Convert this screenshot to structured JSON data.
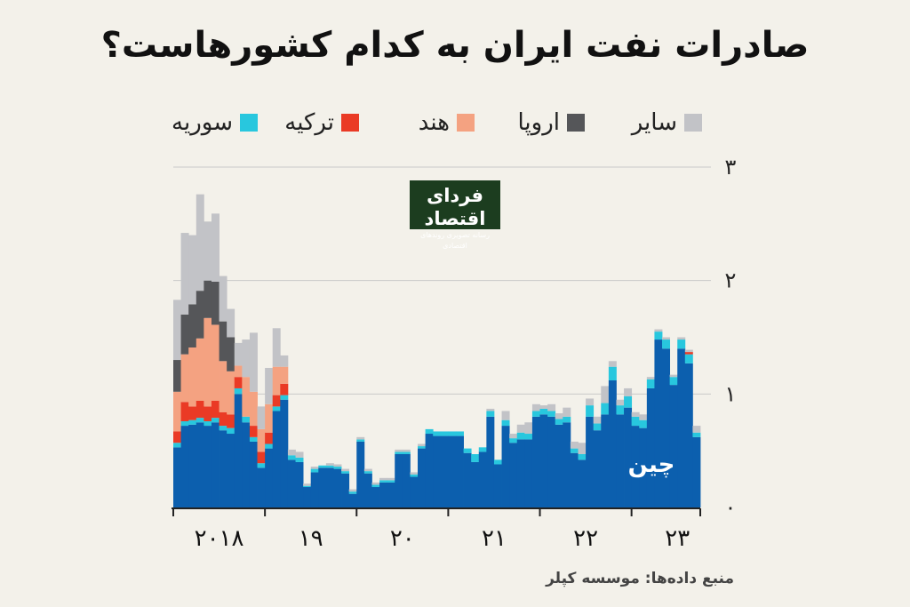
{
  "title": "صادرات نفت ایران به کدام کشورهاست؟",
  "legend": [
    {
      "label": "سایر",
      "color": "#c2c3c7"
    },
    {
      "label": "اروپا",
      "color": "#555659"
    },
    {
      "label": "هند",
      "color": "#f4a281"
    },
    {
      "label": "ترکیه",
      "color": "#ea3a25"
    },
    {
      "label": "سوریه",
      "color": "#28c7de"
    }
  ],
  "logo": {
    "main": "فردای اقتصاد",
    "sub": "رسانه تصویری روندهای اقتصادی"
  },
  "source": "منبع داده‌ها: موسسه کپلر",
  "chart_data": {
    "type": "area",
    "subtype": "stacked-bar",
    "y_ticks": [
      {
        "value": 0,
        "label": "۰"
      },
      {
        "value": 1,
        "label": "۱"
      },
      {
        "value": 2,
        "label": "۲"
      },
      {
        "value": 3,
        "label": "۳"
      }
    ],
    "ylim": [
      0,
      3
    ],
    "grid": true,
    "x_labels": [
      {
        "label": "۲۰۱۸",
        "index": 3
      },
      {
        "label": "۱۹",
        "index": 15
      },
      {
        "label": "۲۰",
        "index": 27
      },
      {
        "label": "۲۱",
        "index": 39
      },
      {
        "label": "۲۲",
        "index": 51
      },
      {
        "label": "۲۳",
        "index": 63
      }
    ],
    "series_annotation": "چین",
    "series": [
      {
        "name": "چین",
        "color": "#0c5fae",
        "values": [
          0.53,
          0.72,
          0.73,
          0.75,
          0.72,
          0.75,
          0.68,
          0.65,
          1.0,
          0.75,
          0.58,
          0.35,
          0.52,
          0.85,
          0.95,
          0.42,
          0.4,
          0.18,
          0.31,
          0.35,
          0.35,
          0.34,
          0.3,
          0.12,
          0.58,
          0.3,
          0.18,
          0.22,
          0.22,
          0.47,
          0.47,
          0.27,
          0.52,
          0.65,
          0.63,
          0.63,
          0.63,
          0.63,
          0.48,
          0.4,
          0.49,
          0.8,
          0.38,
          0.72,
          0.57,
          0.6,
          0.6,
          0.8,
          0.82,
          0.8,
          0.73,
          0.75,
          0.48,
          0.42,
          0.8,
          0.68,
          0.82,
          1.12,
          0.82,
          0.88,
          0.72,
          0.7,
          1.05,
          1.48,
          1.4,
          1.08,
          1.4,
          1.27,
          0.62
        ]
      },
      {
        "name": "سوریه",
        "color": "#28c7de",
        "values": [
          0.04,
          0.04,
          0.04,
          0.04,
          0.04,
          0.04,
          0.04,
          0.05,
          0.05,
          0.05,
          0.04,
          0.04,
          0.04,
          0.04,
          0.04,
          0.04,
          0.04,
          0.01,
          0.03,
          0.02,
          0.02,
          0.02,
          0.02,
          0.02,
          0.02,
          0.02,
          0.02,
          0.02,
          0.02,
          0.02,
          0.02,
          0.02,
          0.02,
          0.04,
          0.04,
          0.04,
          0.04,
          0.04,
          0.04,
          0.07,
          0.04,
          0.05,
          0.04,
          0.05,
          0.04,
          0.06,
          0.05,
          0.05,
          0.05,
          0.05,
          0.05,
          0.05,
          0.04,
          0.05,
          0.1,
          0.06,
          0.1,
          0.12,
          0.08,
          0.1,
          0.08,
          0.07,
          0.08,
          0.07,
          0.08,
          0.07,
          0.08,
          0.08,
          0.04
        ]
      },
      {
        "name": "ترکیه",
        "color": "#ea3a25",
        "values": [
          0.1,
          0.17,
          0.12,
          0.15,
          0.13,
          0.15,
          0.12,
          0.12,
          0.1,
          0.0,
          0.1,
          0.1,
          0.1,
          0.1,
          0.1,
          0.0,
          0.0,
          0,
          0,
          0,
          0,
          0,
          0,
          0,
          0,
          0,
          0,
          0,
          0,
          0,
          0,
          0,
          0,
          0,
          0,
          0,
          0,
          0,
          0,
          0,
          0,
          0,
          0,
          0,
          0,
          0,
          0,
          0,
          0,
          0,
          0,
          0,
          0,
          0,
          0,
          0,
          0,
          0,
          0,
          0,
          0,
          0,
          0,
          0,
          0,
          0,
          0,
          0.02,
          0
        ]
      },
      {
        "name": "هند",
        "color": "#f4a281",
        "values": [
          0.35,
          0.42,
          0.52,
          0.55,
          0.78,
          0.67,
          0.45,
          0.38,
          0.1,
          0.35,
          0.3,
          0.2,
          0.25,
          0.25,
          0.15,
          0.0,
          0.0,
          0,
          0,
          0,
          0,
          0,
          0,
          0,
          0,
          0,
          0,
          0,
          0,
          0,
          0,
          0,
          0,
          0,
          0,
          0,
          0,
          0,
          0,
          0,
          0,
          0,
          0,
          0,
          0,
          0,
          0,
          0,
          0,
          0,
          0,
          0,
          0,
          0,
          0,
          0,
          0,
          0,
          0,
          0,
          0,
          0,
          0,
          0,
          0,
          0,
          0,
          0,
          0
        ]
      },
      {
        "name": "اروپا",
        "color": "#555659",
        "values": [
          0.28,
          0.35,
          0.38,
          0.42,
          0.33,
          0.38,
          0.35,
          0.3,
          0.0,
          0.0,
          0.0,
          0.0,
          0.0,
          0.0,
          0.0,
          0.0,
          0.0,
          0,
          0,
          0,
          0,
          0,
          0,
          0,
          0,
          0,
          0,
          0,
          0,
          0,
          0,
          0,
          0,
          0,
          0,
          0,
          0,
          0,
          0,
          0,
          0,
          0,
          0,
          0,
          0,
          0,
          0,
          0,
          0,
          0,
          0,
          0,
          0,
          0,
          0,
          0,
          0,
          0,
          0,
          0,
          0,
          0,
          0,
          0,
          0,
          0,
          0,
          0,
          0
        ]
      },
      {
        "name": "سایر",
        "color": "#c2c3c7",
        "values": [
          0.53,
          0.72,
          0.61,
          0.85,
          0.52,
          0.6,
          0.4,
          0.25,
          0.2,
          0.33,
          0.52,
          0.2,
          0.32,
          0.34,
          0.1,
          0.05,
          0.05,
          0.02,
          0.02,
          0.0,
          0.02,
          0.02,
          0.02,
          0.02,
          0.02,
          0.02,
          0.02,
          0.02,
          0.02,
          0.02,
          0.02,
          0.02,
          0.02,
          0.0,
          0.0,
          0.0,
          0.0,
          0.0,
          0.0,
          0.0,
          0.0,
          0.02,
          0.0,
          0.08,
          0.04,
          0.07,
          0.1,
          0.06,
          0.03,
          0.06,
          0.05,
          0.08,
          0.06,
          0.1,
          0.06,
          0.06,
          0.15,
          0.05,
          0.05,
          0.07,
          0.04,
          0.05,
          0.02,
          0.02,
          0.02,
          0.02,
          0.02,
          0.02,
          0.06
        ]
      }
    ]
  }
}
